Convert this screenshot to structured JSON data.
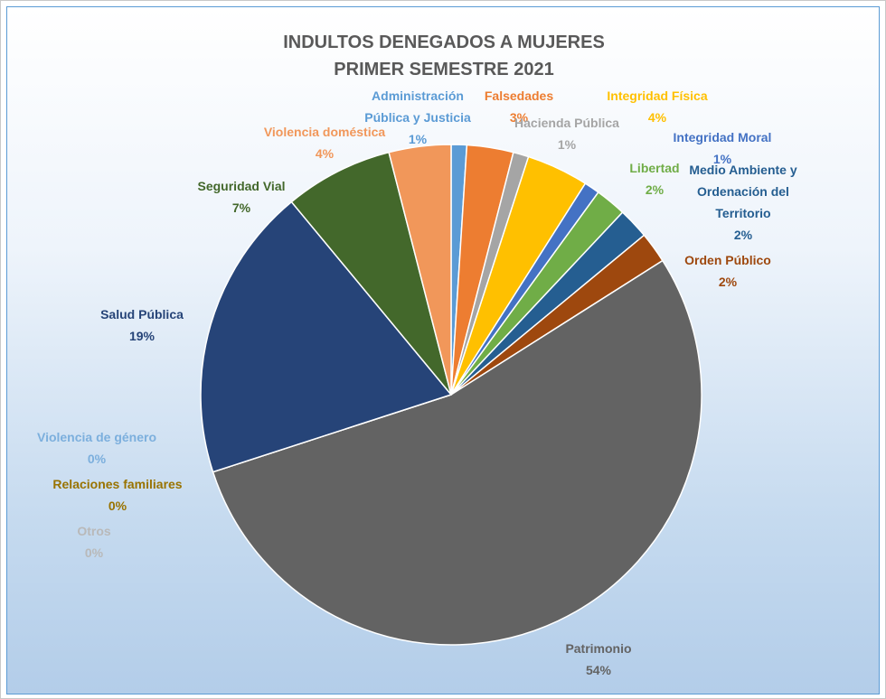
{
  "chart_data": {
    "type": "pie",
    "title": "INDULTOS DENEGADOS A MUJERES",
    "subtitle": "PRIMER SEMESTRE 2021",
    "categories": [
      "Administración Pública y Justicia",
      "Falsedades",
      "Hacienda Pública",
      "Integridad Física",
      "Integridad Moral",
      "Libertad",
      "Medio Ambiente y Ordenación del Territorio",
      "Orden Público",
      "Patrimonio",
      "Otros",
      "Relaciones familiares",
      "Violencia de género",
      "Salud Pública",
      "Seguridad Vial",
      "Violencia doméstica"
    ],
    "values": [
      1,
      3,
      1,
      4,
      1,
      2,
      2,
      2,
      54,
      0,
      0,
      0,
      19,
      7,
      4
    ],
    "value_labels": [
      "1%",
      "3%",
      "1%",
      "4%",
      "1%",
      "2%",
      "2%",
      "2%",
      "54%",
      "0%",
      "0%",
      "0%",
      "19%",
      "7%",
      "4%"
    ],
    "colors": [
      "#5b9bd5",
      "#ed7d31",
      "#a5a5a5",
      "#ffc000",
      "#4472c4",
      "#70ad47",
      "#255e91",
      "#9e480e",
      "#636363",
      "#b9b9b9",
      "#997300",
      "#7cafdd",
      "#264478",
      "#43682b",
      "#f1975a"
    ]
  }
}
